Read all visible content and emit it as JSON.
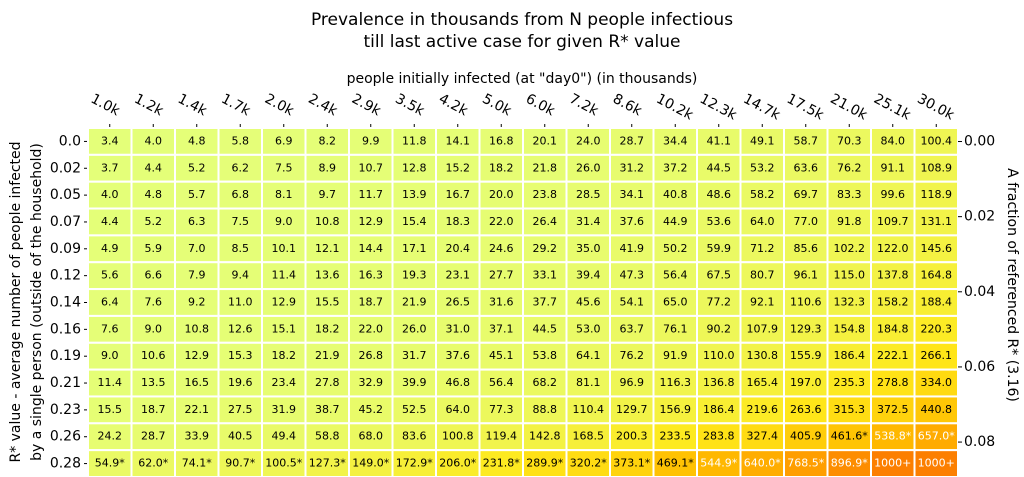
{
  "chart_data": {
    "type": "heatmap",
    "title": [
      "Prevalence in thousands from N people infectious",
      "till last active case for given R* value"
    ],
    "xlabel": "people initially infected (at \"day0\") (in thousands)",
    "ylabel": [
      "R* value - average number of people infected",
      "by a single person (outside of the household)"
    ],
    "y2label": "A fraction of referenced R* (3.16)",
    "x_categories": [
      "1.0k",
      "1.2k",
      "1.4k",
      "1.7k",
      "2.0k",
      "2.4k",
      "2.9k",
      "3.5k",
      "4.2k",
      "5.0k",
      "6.0k",
      "7.2k",
      "8.6k",
      "10.2k",
      "12.3k",
      "14.7k",
      "17.5k",
      "21.0k",
      "25.1k",
      "30.0k"
    ],
    "y_categories": [
      "0.0",
      "0.02",
      "0.05",
      "0.07",
      "0.09",
      "0.12",
      "0.14",
      "0.16",
      "0.19",
      "0.21",
      "0.23",
      "0.26",
      "0.28"
    ],
    "values": [
      [
        3.4,
        4.0,
        4.8,
        5.8,
        6.9,
        8.2,
        9.9,
        11.8,
        14.1,
        16.8,
        20.1,
        24.0,
        28.7,
        34.4,
        41.1,
        49.1,
        58.7,
        70.3,
        84.0,
        100.4
      ],
      [
        3.7,
        4.4,
        5.2,
        6.2,
        7.5,
        8.9,
        10.7,
        12.8,
        15.2,
        18.2,
        21.8,
        26.0,
        31.2,
        37.2,
        44.5,
        53.2,
        63.6,
        76.2,
        91.1,
        108.9
      ],
      [
        4.0,
        4.8,
        5.7,
        6.8,
        8.1,
        9.7,
        11.7,
        13.9,
        16.7,
        20.0,
        23.8,
        28.5,
        34.1,
        40.8,
        48.6,
        58.2,
        69.7,
        83.3,
        99.6,
        118.9
      ],
      [
        4.4,
        5.2,
        6.3,
        7.5,
        9.0,
        10.8,
        12.9,
        15.4,
        18.3,
        22.0,
        26.4,
        31.4,
        37.6,
        44.9,
        53.6,
        64.0,
        77.0,
        91.8,
        109.7,
        131.1
      ],
      [
        4.9,
        5.9,
        7.0,
        8.5,
        10.1,
        12.1,
        14.4,
        17.1,
        20.4,
        24.6,
        29.2,
        35.0,
        41.9,
        50.2,
        59.9,
        71.2,
        85.6,
        102.2,
        122.0,
        145.6
      ],
      [
        5.6,
        6.6,
        7.9,
        9.4,
        11.4,
        13.6,
        16.3,
        19.3,
        23.1,
        27.7,
        33.1,
        39.4,
        47.3,
        56.4,
        67.5,
        80.7,
        96.1,
        115.0,
        137.8,
        164.8
      ],
      [
        6.4,
        7.6,
        9.2,
        11.0,
        12.9,
        15.5,
        18.7,
        21.9,
        26.5,
        31.6,
        37.7,
        45.6,
        54.1,
        65.0,
        77.2,
        92.1,
        110.6,
        132.3,
        158.2,
        188.4
      ],
      [
        7.6,
        9.0,
        10.8,
        12.6,
        15.1,
        18.2,
        22.0,
        26.0,
        31.0,
        37.1,
        44.5,
        53.0,
        63.7,
        76.1,
        90.2,
        107.9,
        129.3,
        154.8,
        184.8,
        220.3
      ],
      [
        9.0,
        10.6,
        12.9,
        15.3,
        18.2,
        21.9,
        26.8,
        31.7,
        37.6,
        45.1,
        53.8,
        64.1,
        76.2,
        91.9,
        110.0,
        130.8,
        155.9,
        186.4,
        222.1,
        266.1
      ],
      [
        11.4,
        13.5,
        16.5,
        19.6,
        23.4,
        27.8,
        32.9,
        39.9,
        46.8,
        56.4,
        68.2,
        81.1,
        96.9,
        116.3,
        136.8,
        165.4,
        197.0,
        235.3,
        278.8,
        334.0
      ],
      [
        15.5,
        18.7,
        22.1,
        27.5,
        31.9,
        38.7,
        45.2,
        52.5,
        64.0,
        77.3,
        88.8,
        110.4,
        129.7,
        156.9,
        186.4,
        219.6,
        263.6,
        315.3,
        372.5,
        440.8
      ],
      [
        24.2,
        28.7,
        33.9,
        40.5,
        49.4,
        58.8,
        68.0,
        83.6,
        100.8,
        119.4,
        142.8,
        168.5,
        200.3,
        233.5,
        283.8,
        327.4,
        405.9,
        461.6,
        538.8,
        657.0
      ],
      [
        54.9,
        62.0,
        74.1,
        90.7,
        100.5,
        127.3,
        149.0,
        172.9,
        206.0,
        231.8,
        289.9,
        320.2,
        373.1,
        469.1,
        544.9,
        640.0,
        768.5,
        896.9,
        1000,
        1000
      ]
    ],
    "value_labels": [
      [
        "3.4",
        "4.0",
        "4.8",
        "5.8",
        "6.9",
        "8.2",
        "9.9",
        "11.8",
        "14.1",
        "16.8",
        "20.1",
        "24.0",
        "28.7",
        "34.4",
        "41.1",
        "49.1",
        "58.7",
        "70.3",
        "84.0",
        "100.4"
      ],
      [
        "3.7",
        "4.4",
        "5.2",
        "6.2",
        "7.5",
        "8.9",
        "10.7",
        "12.8",
        "15.2",
        "18.2",
        "21.8",
        "26.0",
        "31.2",
        "37.2",
        "44.5",
        "53.2",
        "63.6",
        "76.2",
        "91.1",
        "108.9"
      ],
      [
        "4.0",
        "4.8",
        "5.7",
        "6.8",
        "8.1",
        "9.7",
        "11.7",
        "13.9",
        "16.7",
        "20.0",
        "23.8",
        "28.5",
        "34.1",
        "40.8",
        "48.6",
        "58.2",
        "69.7",
        "83.3",
        "99.6",
        "118.9"
      ],
      [
        "4.4",
        "5.2",
        "6.3",
        "7.5",
        "9.0",
        "10.8",
        "12.9",
        "15.4",
        "18.3",
        "22.0",
        "26.4",
        "31.4",
        "37.6",
        "44.9",
        "53.6",
        "64.0",
        "77.0",
        "91.8",
        "109.7",
        "131.1"
      ],
      [
        "4.9",
        "5.9",
        "7.0",
        "8.5",
        "10.1",
        "12.1",
        "14.4",
        "17.1",
        "20.4",
        "24.6",
        "29.2",
        "35.0",
        "41.9",
        "50.2",
        "59.9",
        "71.2",
        "85.6",
        "102.2",
        "122.0",
        "145.6"
      ],
      [
        "5.6",
        "6.6",
        "7.9",
        "9.4",
        "11.4",
        "13.6",
        "16.3",
        "19.3",
        "23.1",
        "27.7",
        "33.1",
        "39.4",
        "47.3",
        "56.4",
        "67.5",
        "80.7",
        "96.1",
        "115.0",
        "137.8",
        "164.8"
      ],
      [
        "6.4",
        "7.6",
        "9.2",
        "11.0",
        "12.9",
        "15.5",
        "18.7",
        "21.9",
        "26.5",
        "31.6",
        "37.7",
        "45.6",
        "54.1",
        "65.0",
        "77.2",
        "92.1",
        "110.6",
        "132.3",
        "158.2",
        "188.4"
      ],
      [
        "7.6",
        "9.0",
        "10.8",
        "12.6",
        "15.1",
        "18.2",
        "22.0",
        "26.0",
        "31.0",
        "37.1",
        "44.5",
        "53.0",
        "63.7",
        "76.1",
        "90.2",
        "107.9",
        "129.3",
        "154.8",
        "184.8",
        "220.3"
      ],
      [
        "9.0",
        "10.6",
        "12.9",
        "15.3",
        "18.2",
        "21.9",
        "26.8",
        "31.7",
        "37.6",
        "45.1",
        "53.8",
        "64.1",
        "76.2",
        "91.9",
        "110.0",
        "130.8",
        "155.9",
        "186.4",
        "222.1",
        "266.1"
      ],
      [
        "11.4",
        "13.5",
        "16.5",
        "19.6",
        "23.4",
        "27.8",
        "32.9",
        "39.9",
        "46.8",
        "56.4",
        "68.2",
        "81.1",
        "96.9",
        "116.3",
        "136.8",
        "165.4",
        "197.0",
        "235.3",
        "278.8",
        "334.0"
      ],
      [
        "15.5",
        "18.7",
        "22.1",
        "27.5",
        "31.9",
        "38.7",
        "45.2",
        "52.5",
        "64.0",
        "77.3",
        "88.8",
        "110.4",
        "129.7",
        "156.9",
        "186.4",
        "219.6",
        "263.6",
        "315.3",
        "372.5",
        "440.8"
      ],
      [
        "24.2",
        "28.7",
        "33.9",
        "40.5",
        "49.4",
        "58.8",
        "68.0",
        "83.6",
        "100.8",
        "119.4",
        "142.8",
        "168.5",
        "200.3",
        "233.5",
        "283.8",
        "327.4",
        "405.9",
        "461.6*",
        "538.8*",
        "657.0*"
      ],
      [
        "54.9*",
        "62.0*",
        "74.1*",
        "90.7*",
        "100.5*",
        "127.3*",
        "149.0*",
        "172.9*",
        "206.0*",
        "231.8*",
        "289.9*",
        "320.2*",
        "373.1*",
        "469.1*",
        "544.9*",
        "640.0*",
        "768.5*",
        "896.9*",
        "1000+",
        "1000+"
      ]
    ],
    "colormap": [
      "#e4ff7a",
      "#ffe81a",
      "#ffbd00",
      "#ffa000",
      "#fc7f00"
    ],
    "colorlim": [
      0,
      1000
    ],
    "y2lim": [
      -0.0036,
      0.0893
    ],
    "y2ticks": [
      {
        "value": 0,
        "label": "0.00"
      },
      {
        "value": 0.02,
        "label": "0.02"
      },
      {
        "value": 0.04,
        "label": "0.04"
      },
      {
        "value": 0.06,
        "label": "0.06"
      },
      {
        "value": 0.08,
        "label": "0.08"
      }
    ]
  }
}
